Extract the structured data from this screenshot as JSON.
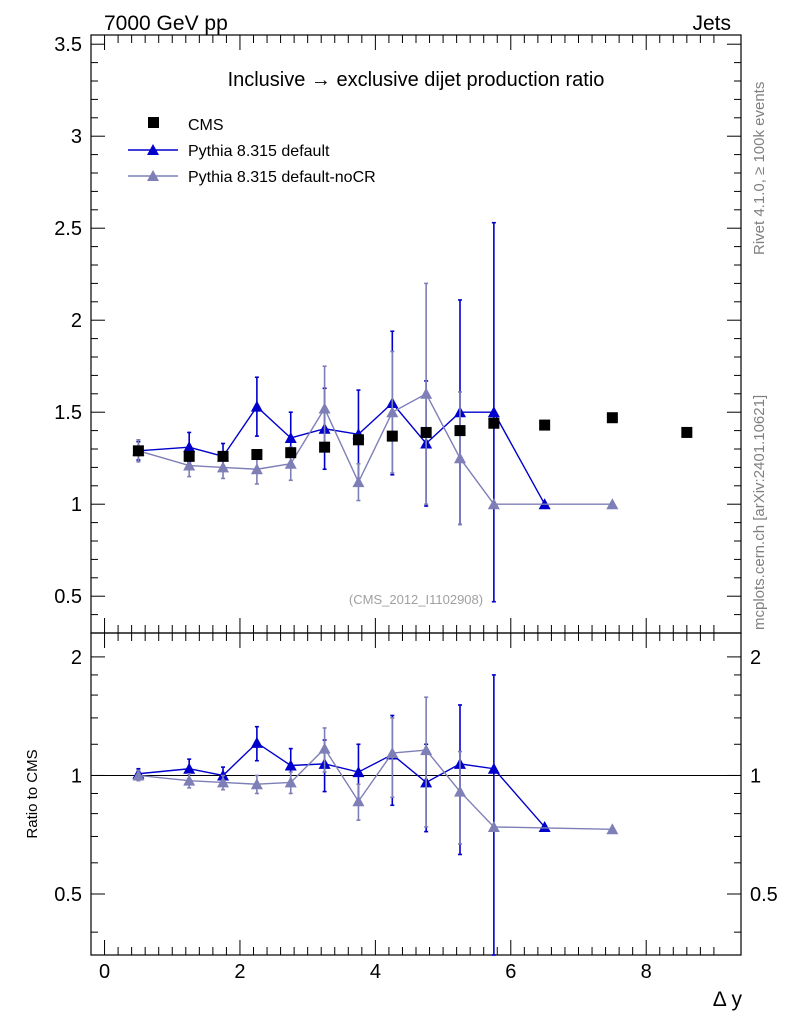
{
  "header": {
    "energy_label": "7000 GeV pp",
    "category_label": "Jets",
    "side_rivet": "Rivet 4.1.0, ≥ 100k events",
    "side_site": "mcplots.cern.ch [arXiv:2401.10621]",
    "analysis_id": "(CMS_2012_I1102908)"
  },
  "chart_data": {
    "type": "line",
    "title": "Inclusive → exclusive dijet production ratio",
    "xlabel": "Δ y",
    "ylabel": "",
    "ratio_ylabel": "Ratio to CMS",
    "xlim": [
      -0.2,
      9.4
    ],
    "ylim": [
      0.3,
      3.55
    ],
    "ratio_ylim": [
      0.35,
      2.3
    ],
    "x_ticks": [
      0,
      2,
      4,
      6,
      8
    ],
    "x_tick_labels": [
      "0",
      "2",
      "4",
      "6",
      "8"
    ],
    "y_ticks": [
      0.5,
      1,
      1.5,
      2,
      2.5,
      3,
      3.5
    ],
    "y_tick_labels": [
      "0.5",
      "1",
      "1.5",
      "2",
      "2.5",
      "3",
      "3.5"
    ],
    "ratio_y_ticks": [
      0.5,
      1,
      2
    ],
    "ratio_y_tick_labels": [
      "0.5",
      "1",
      "2"
    ],
    "legend_position": "top-left",
    "data": {
      "name": "CMS",
      "color": "#000000",
      "x": [
        0.5,
        1.25,
        1.75,
        2.25,
        2.75,
        3.25,
        3.75,
        4.25,
        4.75,
        5.25,
        5.75,
        6.5,
        7.5,
        8.6
      ],
      "y": [
        1.29,
        1.26,
        1.26,
        1.27,
        1.28,
        1.31,
        1.35,
        1.37,
        1.39,
        1.4,
        1.44,
        1.43,
        1.47,
        1.39
      ]
    },
    "series": [
      {
        "name": "Pythia 8.315 default",
        "color": "#0000cc",
        "x": [
          0.5,
          1.25,
          1.75,
          2.25,
          2.75,
          3.25,
          3.75,
          4.25,
          4.75,
          5.25,
          5.75,
          6.5
        ],
        "y": [
          1.29,
          1.31,
          1.26,
          1.53,
          1.36,
          1.41,
          1.38,
          1.55,
          1.33,
          1.5,
          1.5,
          1.0
        ],
        "yerr": [
          0.05,
          0.08,
          0.07,
          0.16,
          0.14,
          0.22,
          0.24,
          0.39,
          0.34,
          0.61,
          1.03,
          0.0
        ],
        "ratio": [
          1.01,
          1.04,
          1.0,
          1.21,
          1.06,
          1.07,
          1.02,
          1.13,
          0.96,
          1.07,
          1.04,
          0.74
        ],
        "ratio_err": [
          0.03,
          0.06,
          0.05,
          0.12,
          0.11,
          0.16,
          0.18,
          0.29,
          0.24,
          0.44,
          0.76,
          0.0
        ]
      },
      {
        "name": "Pythia 8.315 default-noCR",
        "color": "#7f7fb8",
        "x": [
          0.5,
          1.25,
          1.75,
          2.25,
          2.75,
          3.25,
          3.75,
          4.25,
          4.75,
          5.25,
          5.75,
          7.5
        ],
        "y": [
          1.29,
          1.21,
          1.2,
          1.19,
          1.22,
          1.52,
          1.12,
          1.5,
          1.6,
          1.25,
          1.0,
          1.0
        ],
        "yerr": [
          0.06,
          0.06,
          0.06,
          0.08,
          0.09,
          0.23,
          0.1,
          0.33,
          0.6,
          0.36,
          0.0,
          0.0
        ],
        "ratio": [
          1.0,
          0.97,
          0.96,
          0.95,
          0.96,
          1.17,
          0.86,
          1.14,
          1.16,
          0.91,
          0.74,
          0.73
        ],
        "ratio_err": [
          0.03,
          0.04,
          0.04,
          0.05,
          0.06,
          0.15,
          0.09,
          0.26,
          0.42,
          0.24,
          0.0,
          0.0
        ]
      }
    ]
  }
}
